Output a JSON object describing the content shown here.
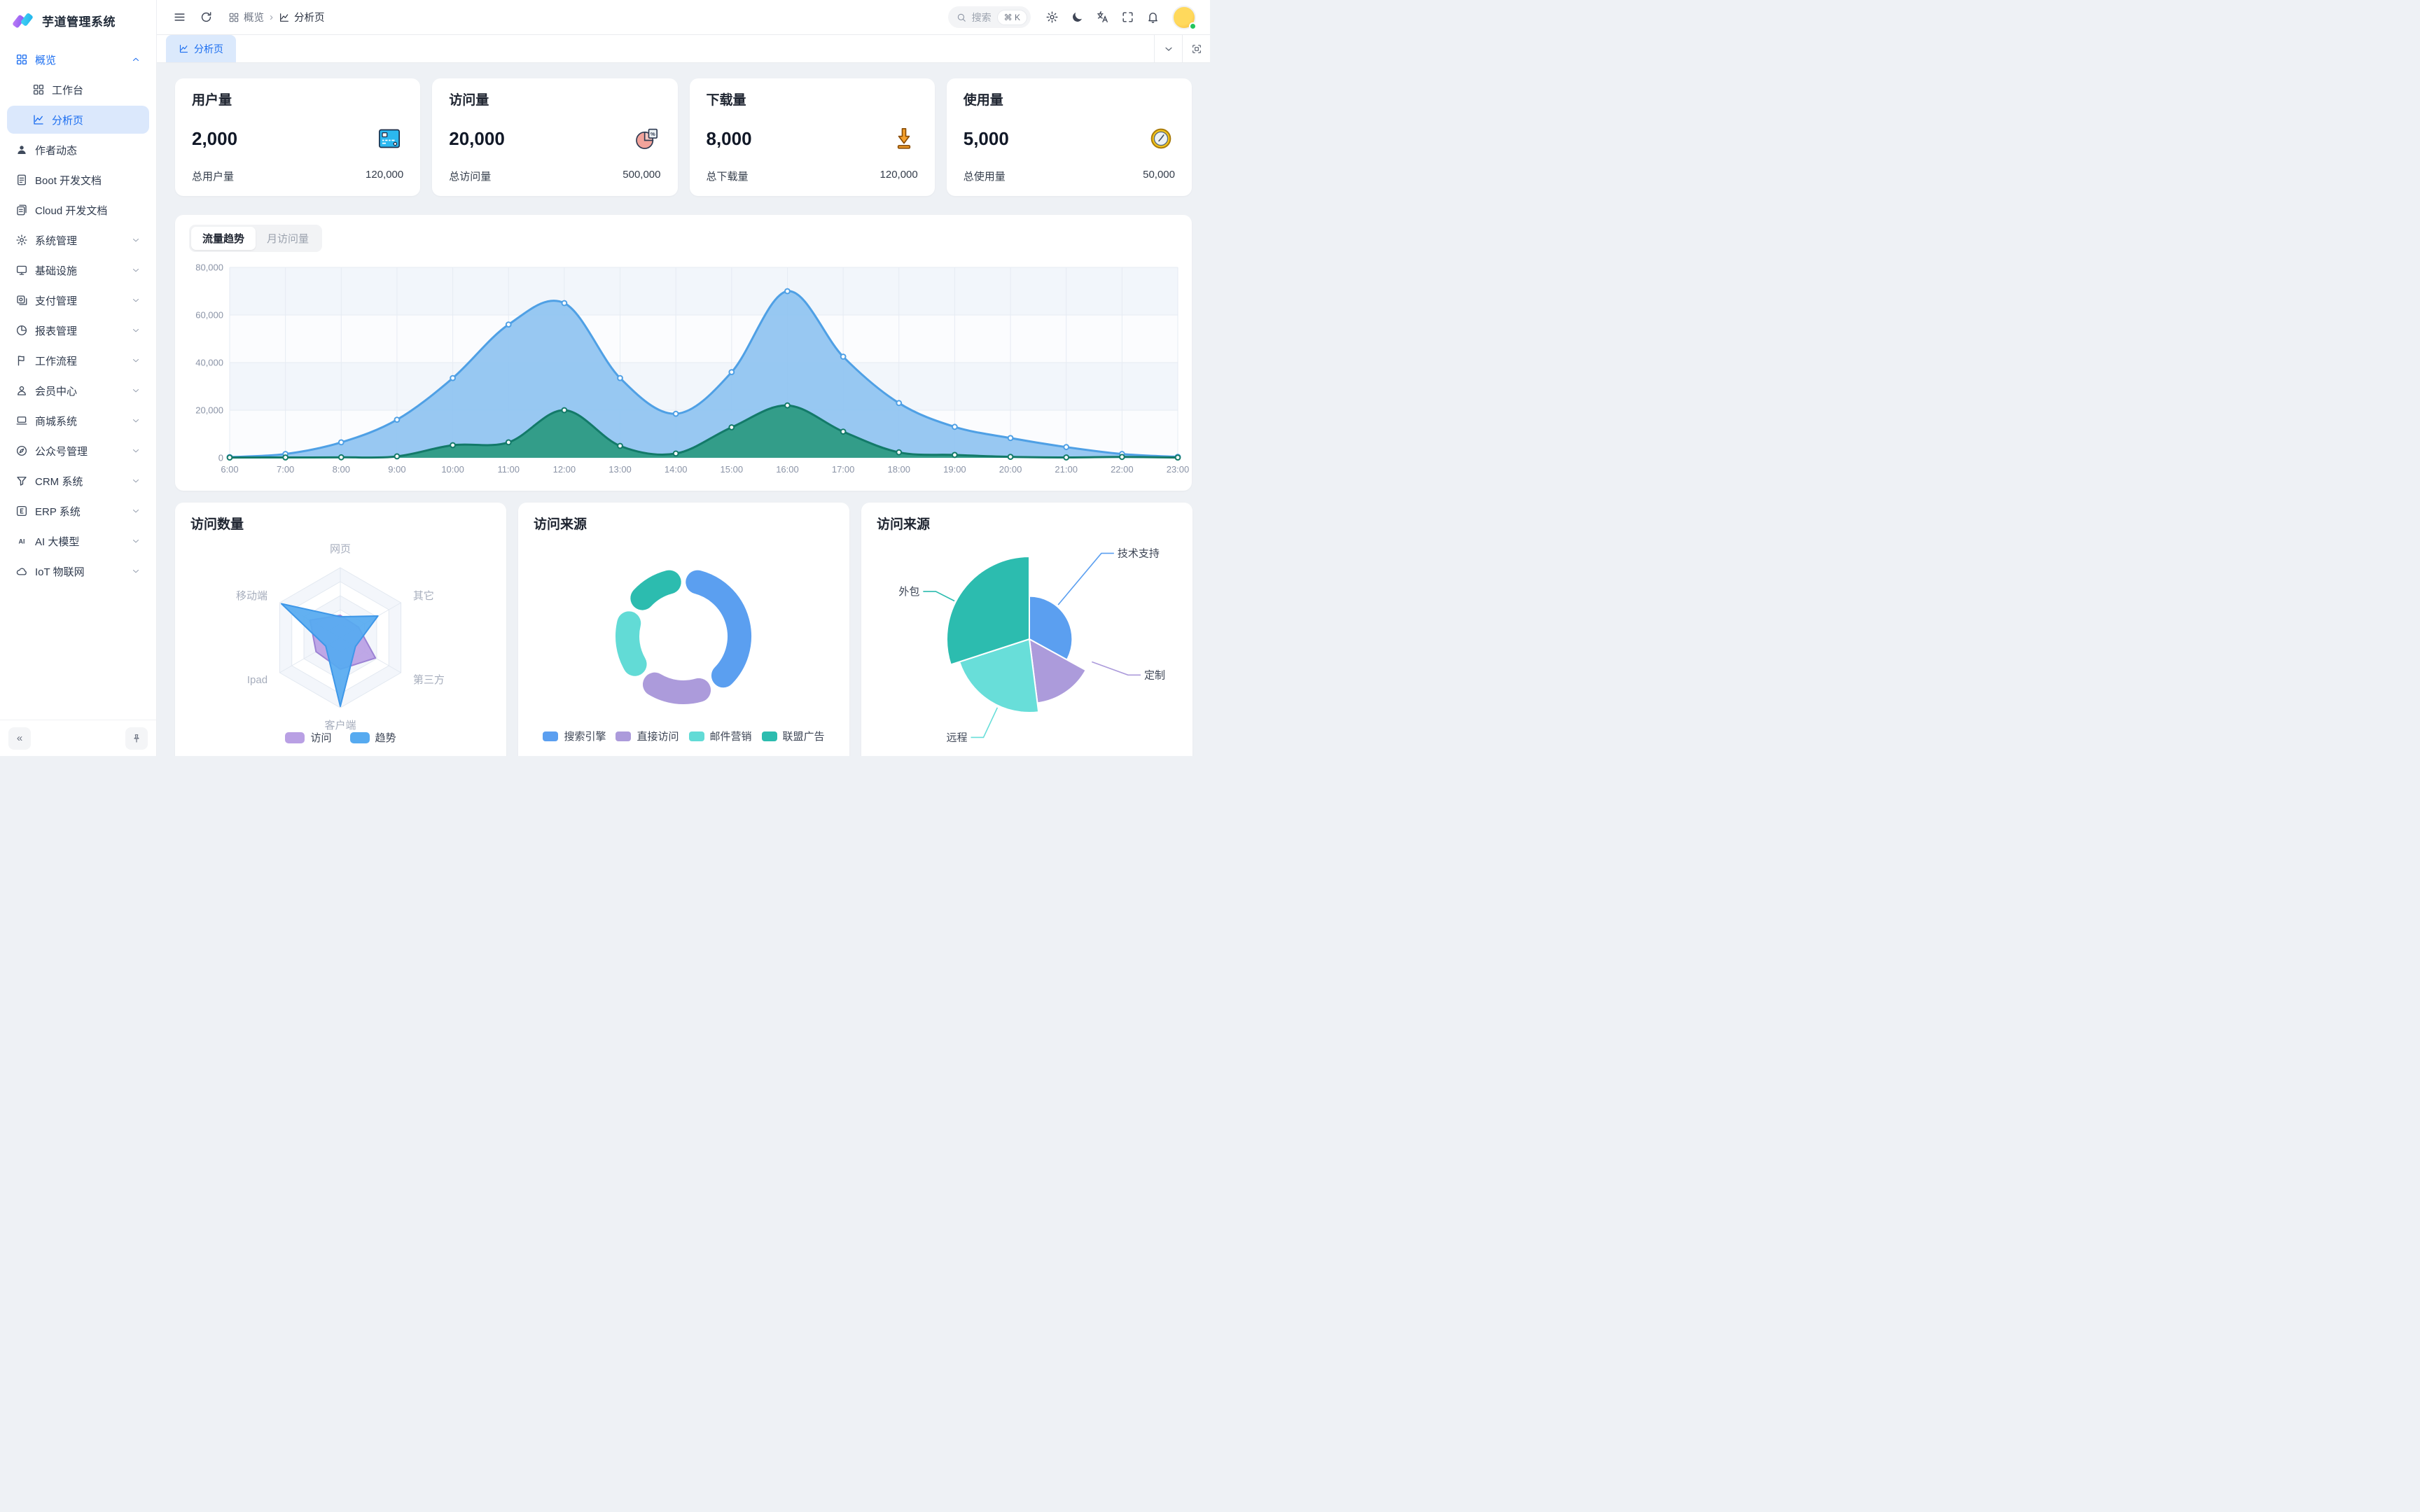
{
  "app": {
    "title": "芋道管理系统"
  },
  "colors": {
    "accent": "#1A6DF0",
    "active_item_bg": "#DBE8FC",
    "online_dot": "#22C55E",
    "content_bg": "#EEF1F5"
  },
  "sidebar": {
    "menu": [
      {
        "label": "概览",
        "icon": "grid",
        "expanded": true,
        "highlight": true,
        "children": [
          {
            "label": "工作台",
            "icon": "grid"
          },
          {
            "label": "分析页",
            "icon": "chart",
            "active": true
          }
        ]
      },
      {
        "label": "作者动态",
        "icon": "user"
      },
      {
        "label": "Boot 开发文档",
        "icon": "file"
      },
      {
        "label": "Cloud 开发文档",
        "icon": "files"
      },
      {
        "label": "系统管理",
        "icon": "gear",
        "chevron": true
      },
      {
        "label": "基础设施",
        "icon": "monitor",
        "chevron": true
      },
      {
        "label": "支付管理",
        "icon": "payment",
        "chevron": true
      },
      {
        "label": "报表管理",
        "icon": "pie",
        "chevron": true
      },
      {
        "label": "工作流程",
        "icon": "flow",
        "chevron": true
      },
      {
        "label": "会员中心",
        "icon": "member",
        "chevron": true
      },
      {
        "label": "商城系统",
        "icon": "shop",
        "chevron": true
      },
      {
        "label": "公众号管理",
        "icon": "mp",
        "chevron": true
      },
      {
        "label": "CRM 系统",
        "icon": "crm",
        "chevron": true
      },
      {
        "label": "ERP 系统",
        "icon": "erp",
        "chevron": true
      },
      {
        "label": "AI 大模型",
        "icon": "ai",
        "chevron": true
      },
      {
        "label": "IoT 物联网",
        "icon": "iot",
        "chevron": true
      }
    ]
  },
  "header": {
    "breadcrumb": [
      {
        "label": "概览",
        "icon": "grid"
      },
      {
        "label": "分析页",
        "icon": "chart"
      }
    ],
    "search": {
      "placeholder": "搜索",
      "shortcut": "⌘ K"
    },
    "actions": [
      "settings",
      "dark-mode",
      "language",
      "fullscreen",
      "notifications"
    ]
  },
  "tabs": {
    "items": [
      {
        "label": "分析页",
        "icon": "chart",
        "active": true
      }
    ]
  },
  "stats": [
    {
      "title": "用户量",
      "value": "2,000",
      "icon": "id-card",
      "footer_label": "总用户量",
      "footer_value": "120,000"
    },
    {
      "title": "访问量",
      "value": "20,000",
      "icon": "pie-doc",
      "footer_label": "总访问量",
      "footer_value": "500,000"
    },
    {
      "title": "下载量",
      "value": "8,000",
      "icon": "download",
      "footer_label": "总下载量",
      "footer_value": "120,000"
    },
    {
      "title": "使用量",
      "value": "5,000",
      "icon": "clock",
      "footer_label": "总使用量",
      "footer_value": "50,000"
    }
  ],
  "trend_tabs": {
    "options": [
      "流量趋势",
      "月访问量"
    ],
    "active": 0
  },
  "chart_data": [
    {
      "type": "area",
      "title": "流量趋势",
      "x": [
        "6:00",
        "7:00",
        "8:00",
        "9:00",
        "10:00",
        "11:00",
        "12:00",
        "13:00",
        "14:00",
        "15:00",
        "16:00",
        "17:00",
        "18:00",
        "19:00",
        "20:00",
        "21:00",
        "22:00",
        "23:00"
      ],
      "series": [
        {
          "name": "series-blue",
          "color": "#4FA0E5",
          "fill": "#8FC3F1",
          "fill_opacity": 0.92,
          "values": [
            300,
            1600,
            6500,
            16000,
            33500,
            56000,
            65000,
            33500,
            18500,
            36000,
            70000,
            42500,
            23000,
            13000,
            8300,
            4500,
            1600,
            400
          ]
        },
        {
          "name": "series-green",
          "color": "#137A69",
          "fill": "#2D9B83",
          "fill_opacity": 0.95,
          "values": [
            100,
            150,
            200,
            600,
            5300,
            6500,
            20000,
            5000,
            1800,
            12800,
            22000,
            11000,
            2300,
            1200,
            400,
            150,
            350,
            120
          ]
        }
      ],
      "ylim": [
        0,
        80000
      ],
      "yticks": [
        0,
        20000,
        40000,
        60000,
        80000
      ],
      "grid": true,
      "legend": "none"
    },
    {
      "type": "radar",
      "title": "访问数量",
      "indicators": [
        "网页",
        "其它",
        "第三方",
        "客户端",
        "Ipad",
        "移动端"
      ],
      "max": 100,
      "series": [
        {
          "name": "访问",
          "fill": "#B9A0E4",
          "line": "#9C82D4",
          "values": [
            32,
            30,
            58,
            45,
            40,
            50
          ]
        },
        {
          "name": "趋势",
          "fill": "#56AAF0",
          "line": "#3E97E8",
          "values": [
            30,
            62,
            25,
            98,
            24,
            97
          ]
        }
      ],
      "legend_position": "bottom"
    },
    {
      "type": "pie",
      "title": "访问来源",
      "subtype": "donut",
      "labels": [
        "搜索引擎",
        "直接访问",
        "邮件营销",
        "联盟广告"
      ],
      "values": [
        1048,
        535,
        510,
        434
      ],
      "colors": [
        "#5B9FF0",
        "#AC9BDB",
        "#62DBD6",
        "#2CBCAF"
      ],
      "legend_position": "bottom"
    },
    {
      "type": "pie",
      "title": "访问来源",
      "subtype": "rose",
      "labels": [
        "技术支持",
        "定制",
        "远程",
        "外包"
      ],
      "values": [
        33,
        15,
        22,
        30
      ],
      "radius_frac": [
        0.52,
        0.78,
        0.89,
        1.0
      ],
      "colors": [
        "#5B9FF0",
        "#AC9BDB",
        "#68DED9",
        "#2CBCAF"
      ],
      "legend_position": "labels-with-lines"
    }
  ]
}
